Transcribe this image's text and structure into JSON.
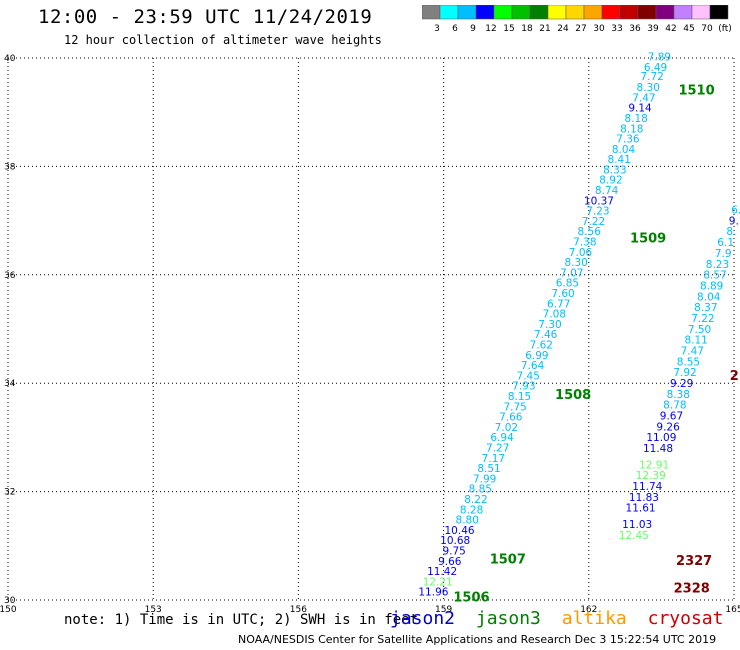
{
  "header": {
    "title": "12:00 - 23:59 UTC 11/24/2019",
    "subtitle": "12 hour collection of altimeter wave heights"
  },
  "colorbar": {
    "labels": [
      "3",
      "6",
      "9",
      "12",
      "15",
      "18",
      "21",
      "24",
      "27",
      "30",
      "33",
      "36",
      "39",
      "42",
      "45",
      "70",
      "(ft)"
    ],
    "colors": [
      "#808080",
      "#00ffff",
      "#00bfff",
      "#0000ff",
      "#00ff00",
      "#00c000",
      "#008000",
      "#ffff00",
      "#ffd700",
      "#ffa500",
      "#ff0000",
      "#c00000",
      "#800000",
      "#800080",
      "#c080ff",
      "#ffc0ff",
      "#000000"
    ]
  },
  "footer": {
    "note": "note: 1) Time is in UTC; 2) SWH is in feet",
    "satellites": [
      {
        "name": "jason2",
        "color": "#0000cc"
      },
      {
        "name": "jason3",
        "color": "#008000"
      },
      {
        "name": "altika",
        "color": "#ff9900"
      },
      {
        "name": "cryosat",
        "color": "#cc0000"
      },
      {
        "name": "s3a",
        "color": "#800000"
      }
    ],
    "credit": "NOAA/NESDIS Center for Satellite Applications and Research    Dec  3 15:22:54 UTC 2019"
  },
  "chart_data": {
    "type": "scatter",
    "xlim": [
      150,
      165
    ],
    "ylim": [
      30,
      40
    ],
    "x_ticks": [
      150,
      153,
      156,
      159,
      162,
      165
    ],
    "y_ticks": [
      30,
      32,
      34,
      36,
      38,
      40
    ],
    "grid": true,
    "track_a": {
      "points": [
        {
          "x": 163.7,
          "y": 39.95,
          "v": "7.89",
          "c": "#00bfff"
        },
        {
          "x": 163.62,
          "y": 39.76,
          "v": "6.49",
          "c": "#00bfff"
        },
        {
          "x": 163.55,
          "y": 39.59,
          "v": "7.72",
          "c": "#00bfff"
        },
        {
          "x": 163.47,
          "y": 39.39,
          "v": "8.30",
          "c": "#00bfff"
        },
        {
          "x": 163.38,
          "y": 39.2,
          "v": "7.47",
          "c": "#00bfff"
        },
        {
          "x": 163.3,
          "y": 39.01,
          "v": "9.14",
          "c": "#0000ff"
        },
        {
          "x": 163.22,
          "y": 38.82,
          "v": "8.18",
          "c": "#00bfff"
        },
        {
          "x": 163.13,
          "y": 38.63,
          "v": "8.18",
          "c": "#00bfff"
        },
        {
          "x": 163.05,
          "y": 38.44,
          "v": "7.36",
          "c": "#00bfff"
        },
        {
          "x": 162.96,
          "y": 38.25,
          "v": "8.04",
          "c": "#00bfff"
        },
        {
          "x": 162.87,
          "y": 38.06,
          "v": "8.41",
          "c": "#00bfff"
        },
        {
          "x": 162.78,
          "y": 37.87,
          "v": "8.33",
          "c": "#00bfff"
        },
        {
          "x": 162.7,
          "y": 37.68,
          "v": "8.92",
          "c": "#00bfff"
        },
        {
          "x": 162.61,
          "y": 37.49,
          "v": "8.74",
          "c": "#00bfff"
        },
        {
          "x": 162.52,
          "y": 37.3,
          "v": "10.37",
          "c": "#0000ff"
        },
        {
          "x": 162.43,
          "y": 37.11,
          "v": "7.23",
          "c": "#00bfff"
        },
        {
          "x": 162.34,
          "y": 36.92,
          "v": "7.22",
          "c": "#00bfff"
        },
        {
          "x": 162.25,
          "y": 36.73,
          "v": "8.56",
          "c": "#00bfff"
        },
        {
          "x": 162.16,
          "y": 36.54,
          "v": "7.38",
          "c": "#00bfff"
        },
        {
          "x": 162.07,
          "y": 36.35,
          "v": "7.06",
          "c": "#00bfff"
        },
        {
          "x": 161.98,
          "y": 36.16,
          "v": "8.30",
          "c": "#00bfff"
        },
        {
          "x": 161.89,
          "y": 35.97,
          "v": "7.07",
          "c": "#00bfff"
        },
        {
          "x": 161.8,
          "y": 35.78,
          "v": "6.85",
          "c": "#00bfff"
        },
        {
          "x": 161.71,
          "y": 35.59,
          "v": "7.60",
          "c": "#00bfff"
        },
        {
          "x": 161.62,
          "y": 35.4,
          "v": "6.77",
          "c": "#00bfff"
        },
        {
          "x": 161.53,
          "y": 35.21,
          "v": "7.08",
          "c": "#00bfff"
        },
        {
          "x": 161.44,
          "y": 35.02,
          "v": "7.30",
          "c": "#00bfff"
        },
        {
          "x": 161.35,
          "y": 34.83,
          "v": "7.46",
          "c": "#00bfff"
        },
        {
          "x": 161.26,
          "y": 34.64,
          "v": "7.62",
          "c": "#00bfff"
        },
        {
          "x": 161.17,
          "y": 34.45,
          "v": "6.99",
          "c": "#00bfff"
        },
        {
          "x": 161.08,
          "y": 34.26,
          "v": "7.64",
          "c": "#00bfff"
        },
        {
          "x": 160.99,
          "y": 34.07,
          "v": "7.45",
          "c": "#00bfff"
        },
        {
          "x": 160.9,
          "y": 33.88,
          "v": "7.93",
          "c": "#00bfff"
        },
        {
          "x": 160.81,
          "y": 33.69,
          "v": "8.15",
          "c": "#00bfff"
        },
        {
          "x": 160.72,
          "y": 33.5,
          "v": "7.75",
          "c": "#00bfff"
        },
        {
          "x": 160.63,
          "y": 33.31,
          "v": "7.66",
          "c": "#00bfff"
        },
        {
          "x": 160.54,
          "y": 33.12,
          "v": "7.02",
          "c": "#00bfff"
        },
        {
          "x": 160.45,
          "y": 32.93,
          "v": "6.94",
          "c": "#00bfff"
        },
        {
          "x": 160.36,
          "y": 32.74,
          "v": "7.27",
          "c": "#00bfff"
        },
        {
          "x": 160.27,
          "y": 32.55,
          "v": "7.17",
          "c": "#00bfff"
        },
        {
          "x": 160.18,
          "y": 32.36,
          "v": "8.51",
          "c": "#00bfff"
        },
        {
          "x": 160.09,
          "y": 32.17,
          "v": "7.99",
          "c": "#00bfff"
        },
        {
          "x": 160.0,
          "y": 31.98,
          "v": "8.85",
          "c": "#00bfff"
        },
        {
          "x": 159.91,
          "y": 31.79,
          "v": "8.22",
          "c": "#00bfff"
        },
        {
          "x": 159.82,
          "y": 31.6,
          "v": "8.28",
          "c": "#00bfff"
        },
        {
          "x": 159.73,
          "y": 31.41,
          "v": "8.80",
          "c": "#00bfff"
        },
        {
          "x": 159.64,
          "y": 31.22,
          "v": "10.46",
          "c": "#0000ff"
        },
        {
          "x": 159.55,
          "y": 31.03,
          "v": "10.68",
          "c": "#0000ff"
        },
        {
          "x": 159.46,
          "y": 30.84,
          "v": "9.75",
          "c": "#0000ff"
        },
        {
          "x": 159.37,
          "y": 30.65,
          "v": "9.66",
          "c": "#0000ff"
        },
        {
          "x": 159.28,
          "y": 30.46,
          "v": "11.42",
          "c": "#0000ff"
        },
        {
          "x": 159.19,
          "y": 30.27,
          "v": "12.21",
          "c": "#66ff66"
        },
        {
          "x": 159.1,
          "y": 30.08,
          "v": "11.96",
          "c": "#0000ff"
        }
      ],
      "time_labels": [
        {
          "x": 164.6,
          "y": 39.33,
          "t": "1510"
        },
        {
          "x": 163.6,
          "y": 36.6,
          "t": "1509"
        },
        {
          "x": 162.05,
          "y": 33.71,
          "t": "1508"
        },
        {
          "x": 160.7,
          "y": 30.67,
          "t": "1507"
        },
        {
          "x": 159.95,
          "y": 29.97,
          "t": "1506"
        }
      ]
    },
    "track_b": {
      "points": [
        {
          "x": 165.15,
          "y": 37.13,
          "v": "6.",
          "c": "#00bfff"
        },
        {
          "x": 165.1,
          "y": 36.93,
          "v": "9.",
          "c": "#0000ff"
        },
        {
          "x": 165.05,
          "y": 36.73,
          "v": "8.",
          "c": "#00bfff"
        },
        {
          "x": 165.0,
          "y": 36.53,
          "v": "6.1",
          "c": "#00bfff"
        },
        {
          "x": 164.95,
          "y": 36.33,
          "v": "7.9",
          "c": "#00bfff"
        },
        {
          "x": 164.9,
          "y": 36.13,
          "v": "8.23",
          "c": "#00bfff"
        },
        {
          "x": 164.85,
          "y": 35.93,
          "v": "8.57",
          "c": "#00bfff"
        },
        {
          "x": 164.78,
          "y": 35.73,
          "v": "8.89",
          "c": "#00bfff"
        },
        {
          "x": 164.72,
          "y": 35.53,
          "v": "8.04",
          "c": "#00bfff"
        },
        {
          "x": 164.66,
          "y": 35.33,
          "v": "8.37",
          "c": "#00bfff"
        },
        {
          "x": 164.6,
          "y": 35.13,
          "v": "7.22",
          "c": "#00bfff"
        },
        {
          "x": 164.53,
          "y": 34.93,
          "v": "7.50",
          "c": "#00bfff"
        },
        {
          "x": 164.46,
          "y": 34.73,
          "v": "8.11",
          "c": "#00bfff"
        },
        {
          "x": 164.38,
          "y": 34.53,
          "v": "7.47",
          "c": "#00bfff"
        },
        {
          "x": 164.3,
          "y": 34.33,
          "v": "8.55",
          "c": "#00bfff"
        },
        {
          "x": 164.23,
          "y": 34.13,
          "v": "7.92",
          "c": "#00bfff"
        },
        {
          "x": 164.16,
          "y": 33.93,
          "v": "9.29",
          "c": "#0000ff"
        },
        {
          "x": 164.09,
          "y": 33.73,
          "v": "8.38",
          "c": "#00bfff"
        },
        {
          "x": 164.02,
          "y": 33.53,
          "v": "8.78",
          "c": "#00bfff"
        },
        {
          "x": 163.95,
          "y": 33.33,
          "v": "9.67",
          "c": "#0000ff"
        },
        {
          "x": 163.88,
          "y": 33.13,
          "v": "9.26",
          "c": "#0000ff"
        },
        {
          "x": 163.81,
          "y": 32.93,
          "v": "11.09",
          "c": "#0000ff"
        },
        {
          "x": 163.74,
          "y": 32.73,
          "v": "11.48",
          "c": "#0000ff"
        },
        {
          "x": 163.66,
          "y": 32.43,
          "v": "12.91",
          "c": "#66ff66"
        },
        {
          "x": 163.59,
          "y": 32.23,
          "v": "12.39",
          "c": "#66ff66"
        },
        {
          "x": 163.52,
          "y": 32.03,
          "v": "11.74",
          "c": "#0000ff"
        },
        {
          "x": 163.45,
          "y": 31.83,
          "v": "11.83",
          "c": "#0000ff"
        },
        {
          "x": 163.38,
          "y": 31.63,
          "v": "11.61",
          "c": "#0000ff"
        },
        {
          "x": 163.31,
          "y": 31.33,
          "v": "11.03",
          "c": "#0000ff"
        },
        {
          "x": 163.24,
          "y": 31.13,
          "v": "12.45",
          "c": "#66ff66"
        }
      ],
      "time_labels": [
        {
          "x": 164.55,
          "y": 30.65,
          "t": "2327",
          "c": "#800000"
        },
        {
          "x": 164.5,
          "y": 30.14,
          "t": "2328",
          "c": "#800000"
        },
        {
          "x": 165.1,
          "y": 34.06,
          "t": "2",
          "c": "#800000"
        }
      ]
    }
  }
}
